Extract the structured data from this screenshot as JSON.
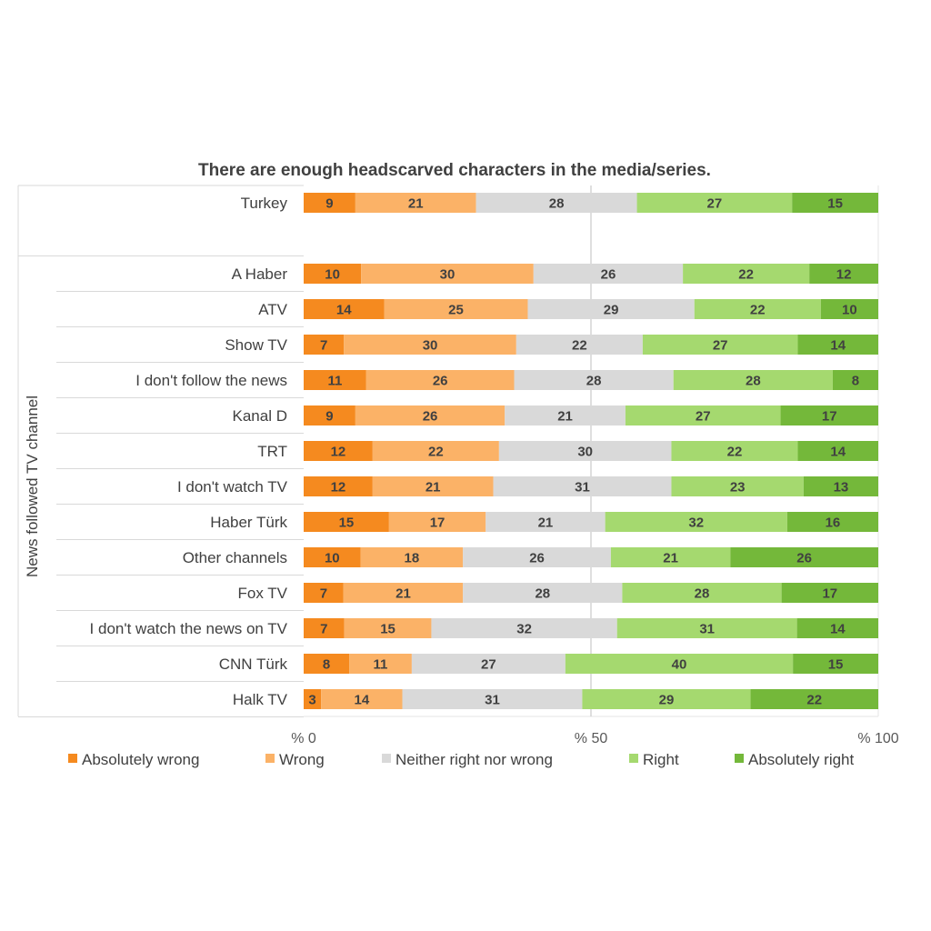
{
  "chart_data": {
    "type": "bar",
    "orientation": "horizontal",
    "stacked": "100%",
    "title": "There are enough headscarved characters in the media/series.",
    "ylabel": "News followed TV channel",
    "xlabel": "",
    "xlim": [
      0,
      100
    ],
    "x_ticks": [
      "% 0",
      "% 50",
      "% 100"
    ],
    "grid": "vertical line at 50",
    "legend_position": "bottom",
    "categories": [
      "Turkey",
      "",
      "A Haber",
      "ATV",
      "Show TV",
      "I don't follow the news",
      "Kanal D",
      "TRT",
      "I don't watch TV",
      "Haber Türk",
      "Other channels",
      "Fox TV",
      "I don't watch the news on TV",
      "CNN Türk",
      "Halk TV"
    ],
    "series": [
      {
        "name": "Absolutely wrong",
        "color": "#F58A1F",
        "values": [
          9,
          null,
          10,
          14,
          7,
          11,
          9,
          12,
          12,
          15,
          10,
          7,
          7,
          8,
          3
        ]
      },
      {
        "name": "Wrong",
        "color": "#FBB267",
        "values": [
          21,
          null,
          30,
          25,
          30,
          26,
          26,
          22,
          21,
          17,
          18,
          21,
          15,
          11,
          14
        ]
      },
      {
        "name": "Neither right nor wrong",
        "color": "#D9D9D9",
        "values": [
          28,
          null,
          26,
          29,
          22,
          28,
          21,
          30,
          31,
          21,
          26,
          28,
          32,
          27,
          31
        ]
      },
      {
        "name": "Right",
        "color": "#A5D96F",
        "values": [
          27,
          null,
          22,
          22,
          27,
          28,
          27,
          22,
          23,
          32,
          21,
          28,
          31,
          40,
          29
        ]
      },
      {
        "name": "Absolutely right",
        "color": "#74B83A",
        "values": [
          15,
          null,
          12,
          10,
          14,
          8,
          17,
          14,
          13,
          16,
          26,
          17,
          14,
          15,
          22
        ]
      }
    ]
  }
}
